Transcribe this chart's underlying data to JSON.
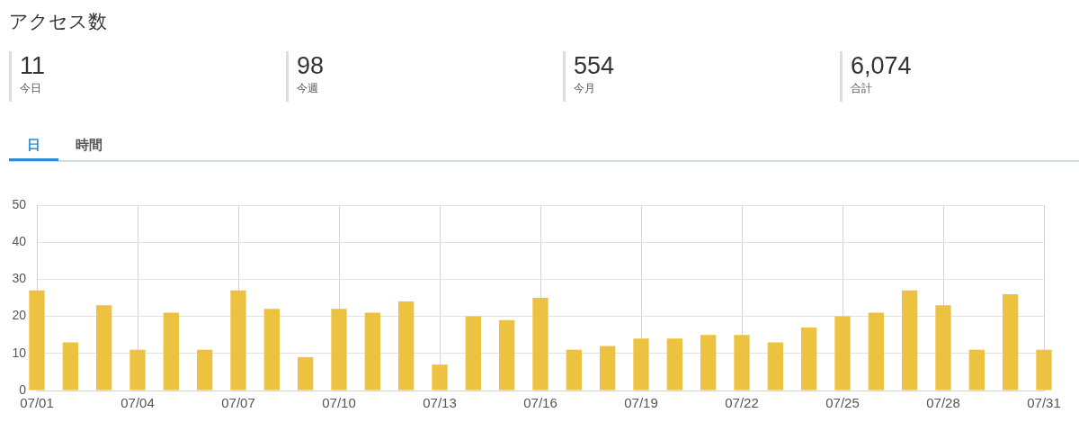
{
  "chart_data": [
    {
      "type": "other",
      "title": "アクセス数",
      "annotations": [
        "11",
        "今日",
        "98",
        "今週",
        "554",
        "今月",
        "6,074",
        "合計"
      ]
    },
    {
      "type": "bar",
      "annotations": [
        "日",
        "時間"
      ],
      "categories": [
        "07/01",
        null,
        null,
        "07/04",
        null,
        null,
        "07/07",
        null,
        null,
        "07/10",
        null,
        null,
        "07/13",
        null,
        null,
        "07/16",
        null,
        null,
        "07/19",
        null,
        null,
        "07/22",
        null,
        null,
        "07/25",
        null,
        null,
        "07/28",
        null,
        null,
        "07/31"
      ],
      "values": [
        27,
        13,
        23,
        11,
        21,
        11,
        27,
        22,
        9,
        22,
        21,
        24,
        7,
        20,
        19,
        25,
        11,
        12,
        14,
        14,
        15,
        15,
        13,
        17,
        20,
        21,
        27,
        23,
        11,
        26,
        11
      ],
      "color": "#edc240",
      "ylim": [
        0,
        50
      ],
      "yticks": [
        0,
        10,
        20,
        30,
        40,
        50
      ],
      "grid": true,
      "legend": false
    }
  ]
}
